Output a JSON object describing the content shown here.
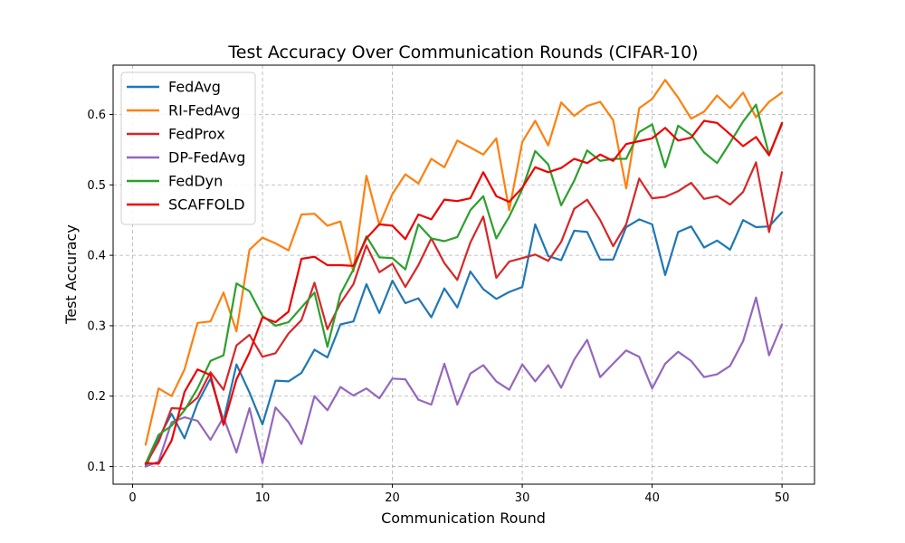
{
  "chart_data": {
    "type": "line",
    "title": "Test Accuracy Over Communication Rounds (CIFAR-10)",
    "xlabel": "Communication Round",
    "ylabel": "Test Accuracy",
    "xlim": [
      -1.5,
      52.5
    ],
    "ylim": [
      0.075,
      0.67
    ],
    "xticks": [
      0,
      10,
      20,
      30,
      40,
      50
    ],
    "yticks": [
      0.1,
      0.2,
      0.3,
      0.4,
      0.5,
      0.6
    ],
    "xtick_labels": [
      "0",
      "10",
      "20",
      "30",
      "40",
      "50"
    ],
    "ytick_labels": [
      "0.1",
      "0.2",
      "0.3",
      "0.4",
      "0.5",
      "0.6"
    ],
    "grid": true,
    "legend_position": "top-left",
    "x": [
      1,
      2,
      3,
      4,
      5,
      6,
      7,
      8,
      9,
      10,
      11,
      12,
      13,
      14,
      15,
      16,
      17,
      18,
      19,
      20,
      21,
      22,
      23,
      24,
      25,
      26,
      27,
      28,
      29,
      30,
      31,
      32,
      33,
      34,
      35,
      36,
      37,
      38,
      39,
      40,
      41,
      42,
      43,
      44,
      45,
      46,
      47,
      48,
      49,
      50
    ],
    "series": [
      {
        "name": "FedAvg",
        "color": "#1f77b4",
        "values": [
          0.1,
          0.14,
          0.175,
          0.14,
          0.19,
          0.225,
          0.165,
          0.245,
          0.205,
          0.16,
          0.222,
          0.221,
          0.233,
          0.266,
          0.255,
          0.302,
          0.306,
          0.359,
          0.318,
          0.364,
          0.332,
          0.339,
          0.312,
          0.353,
          0.326,
          0.377,
          0.352,
          0.338,
          0.348,
          0.355,
          0.444,
          0.399,
          0.393,
          0.435,
          0.433,
          0.394,
          0.394,
          0.44,
          0.451,
          0.444,
          0.372,
          0.433,
          0.441,
          0.411,
          0.421,
          0.408,
          0.45,
          0.44,
          0.441,
          0.461
        ]
      },
      {
        "name": "RI-FedAvg",
        "color": "#ff7f0e",
        "values": [
          0.131,
          0.211,
          0.2,
          0.238,
          0.304,
          0.306,
          0.347,
          0.292,
          0.408,
          0.425,
          0.417,
          0.407,
          0.458,
          0.459,
          0.442,
          0.448,
          0.377,
          0.513,
          0.443,
          0.487,
          0.515,
          0.502,
          0.537,
          0.525,
          0.563,
          0.553,
          0.543,
          0.566,
          0.464,
          0.561,
          0.591,
          0.556,
          0.617,
          0.598,
          0.612,
          0.618,
          0.592,
          0.495,
          0.609,
          0.622,
          0.649,
          0.624,
          0.594,
          0.604,
          0.627,
          0.609,
          0.631,
          0.596,
          0.618,
          0.631
        ]
      },
      {
        "name": "FedProx",
        "color": "#d62728",
        "values": [
          0.103,
          0.135,
          0.183,
          0.182,
          0.198,
          0.234,
          0.209,
          0.272,
          0.287,
          0.256,
          0.261,
          0.289,
          0.308,
          0.361,
          0.295,
          0.332,
          0.359,
          0.414,
          0.376,
          0.388,
          0.355,
          0.386,
          0.424,
          0.389,
          0.365,
          0.418,
          0.455,
          0.368,
          0.391,
          0.396,
          0.401,
          0.392,
          0.419,
          0.466,
          0.479,
          0.45,
          0.413,
          0.444,
          0.509,
          0.481,
          0.483,
          0.491,
          0.503,
          0.48,
          0.484,
          0.472,
          0.49,
          0.532,
          0.433,
          0.518
        ]
      },
      {
        "name": "DP-FedAvg",
        "color": "#9467bd",
        "values": [
          0.1,
          0.107,
          0.163,
          0.17,
          0.165,
          0.138,
          0.17,
          0.12,
          0.183,
          0.105,
          0.184,
          0.163,
          0.132,
          0.2,
          0.18,
          0.213,
          0.201,
          0.211,
          0.197,
          0.225,
          0.224,
          0.195,
          0.188,
          0.246,
          0.188,
          0.232,
          0.244,
          0.221,
          0.209,
          0.245,
          0.221,
          0.244,
          0.212,
          0.252,
          0.28,
          0.227,
          0.246,
          0.265,
          0.256,
          0.211,
          0.246,
          0.263,
          0.25,
          0.227,
          0.231,
          0.243,
          0.278,
          0.34,
          0.258,
          0.302
        ]
      },
      {
        "name": "FedDyn",
        "color": "#2ca02c",
        "values": [
          0.104,
          0.145,
          0.158,
          0.18,
          0.211,
          0.25,
          0.258,
          0.36,
          0.349,
          0.314,
          0.3,
          0.305,
          0.326,
          0.347,
          0.27,
          0.345,
          0.38,
          0.427,
          0.397,
          0.396,
          0.38,
          0.444,
          0.424,
          0.42,
          0.426,
          0.464,
          0.484,
          0.424,
          0.455,
          0.494,
          0.548,
          0.529,
          0.471,
          0.506,
          0.549,
          0.534,
          0.537,
          0.537,
          0.575,
          0.586,
          0.525,
          0.584,
          0.571,
          0.546,
          0.531,
          0.56,
          0.59,
          0.614,
          0.543,
          0.586
        ]
      },
      {
        "name": "SCAFFOLD",
        "color": "#ee0000",
        "values": [
          0.105,
          0.104,
          0.137,
          0.206,
          0.238,
          0.23,
          0.159,
          0.224,
          0.262,
          0.312,
          0.305,
          0.32,
          0.395,
          0.398,
          0.386,
          0.386,
          0.385,
          0.424,
          0.444,
          0.442,
          0.423,
          0.458,
          0.451,
          0.479,
          0.477,
          0.481,
          0.518,
          0.484,
          0.476,
          0.496,
          0.525,
          0.518,
          0.524,
          0.537,
          0.531,
          0.543,
          0.534,
          0.558,
          0.562,
          0.566,
          0.581,
          0.563,
          0.567,
          0.591,
          0.588,
          0.572,
          0.555,
          0.568,
          0.542,
          0.588
        ]
      }
    ]
  }
}
